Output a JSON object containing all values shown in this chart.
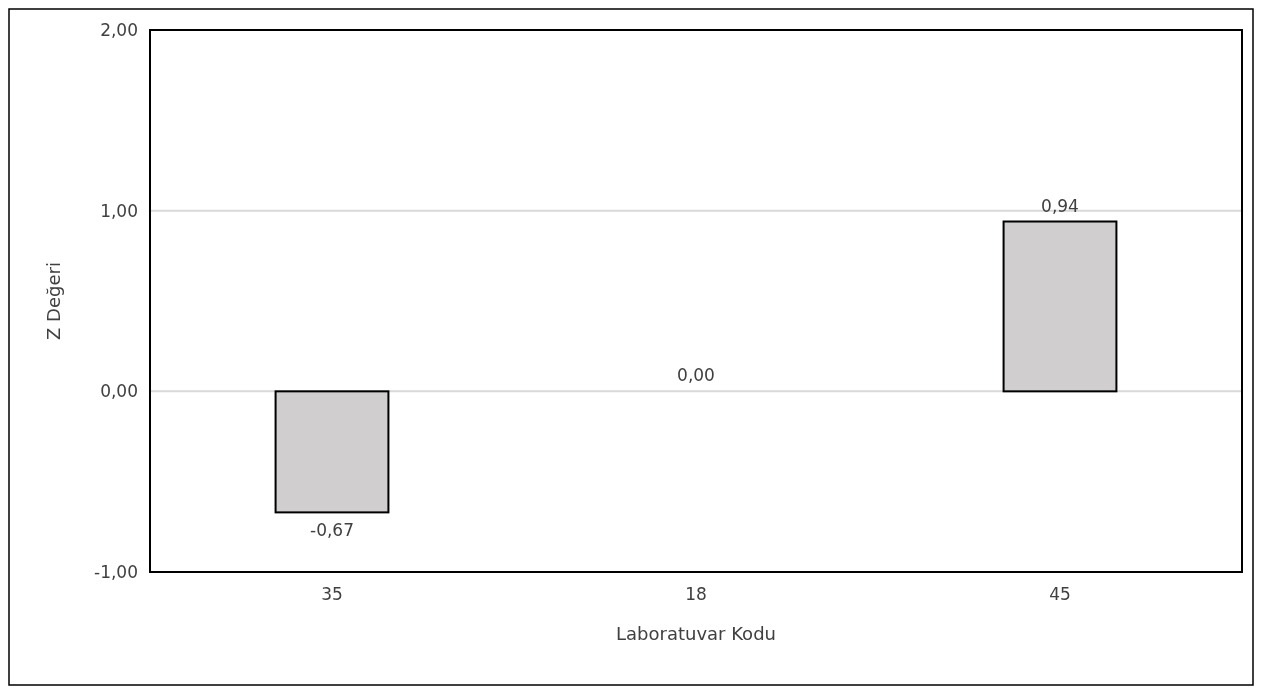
{
  "chart_data": {
    "type": "bar",
    "xlabel": "Laboratuvar Kodu",
    "ylabel": "Z Değeri",
    "categories": [
      "35",
      "18",
      "45"
    ],
    "values": [
      -0.67,
      0,
      0.94
    ],
    "value_labels": [
      "-0,67",
      "0,00",
      "0,94"
    ],
    "color": "#d0cece",
    "ylim": [
      -1,
      2
    ],
    "yticks": [
      {
        "value": -1,
        "label": "-1,00"
      },
      {
        "value": 0,
        "label": "0,00"
      },
      {
        "value": 1,
        "label": "1,00"
      },
      {
        "value": 2,
        "label": "2,00"
      }
    ],
    "grid": "y"
  }
}
